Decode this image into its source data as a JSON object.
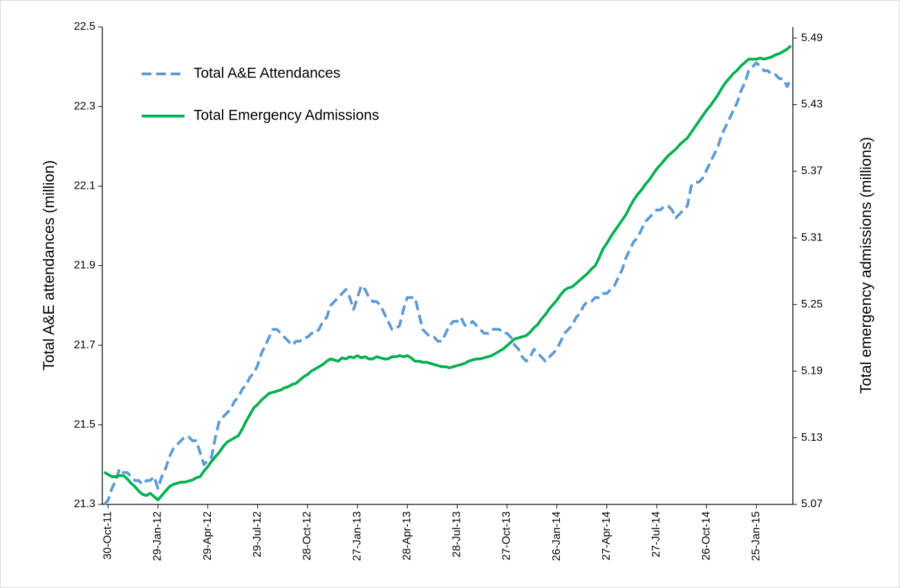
{
  "chart_data": {
    "type": "line",
    "categories": [
      null,
      "30-Oct-11",
      null,
      null,
      null,
      null,
      null,
      null,
      null,
      null,
      null,
      null,
      null,
      null,
      "29-Jan-12",
      null,
      null,
      null,
      null,
      null,
      null,
      null,
      null,
      null,
      null,
      null,
      null,
      "29-Apr-12",
      null,
      null,
      null,
      null,
      null,
      null,
      null,
      null,
      null,
      null,
      null,
      null,
      "29-Jul-12",
      null,
      null,
      null,
      null,
      null,
      null,
      null,
      null,
      null,
      null,
      null,
      null,
      "28-Oct-12",
      null,
      null,
      null,
      null,
      null,
      null,
      null,
      null,
      null,
      null,
      null,
      null,
      "27-Jan-13",
      null,
      null,
      null,
      null,
      null,
      null,
      null,
      null,
      null,
      null,
      null,
      null,
      "28-Apr-13",
      null,
      null,
      null,
      null,
      null,
      null,
      null,
      null,
      null,
      null,
      null,
      null,
      "28-Jul-13",
      null,
      null,
      null,
      null,
      null,
      null,
      null,
      null,
      null,
      null,
      null,
      null,
      "27-Oct-13",
      null,
      null,
      null,
      null,
      null,
      null,
      null,
      null,
      null,
      null,
      null,
      null,
      "26-Jan-14",
      null,
      null,
      null,
      null,
      null,
      null,
      null,
      null,
      null,
      null,
      null,
      null,
      "27-Apr-14",
      null,
      null,
      null,
      null,
      null,
      null,
      null,
      null,
      null,
      null,
      null,
      null,
      "27-Jul-14",
      null,
      null,
      null,
      null,
      null,
      null,
      null,
      null,
      null,
      null,
      null,
      null,
      "26-Oct-14",
      null,
      null,
      null,
      null,
      null,
      null,
      null,
      null,
      null,
      null,
      null,
      null,
      "25-Jan-15",
      null,
      null,
      null,
      null,
      null,
      null,
      null,
      null,
      null
    ],
    "series": [
      {
        "name": "Total A&E Attendances",
        "color": "#5b9bd5",
        "line_style": "dashed",
        "values": [
          21.3,
          21.31,
          21.34,
          21.36,
          21.39,
          21.38,
          21.38,
          21.37,
          21.36,
          21.36,
          21.35,
          21.36,
          21.36,
          21.37,
          21.34,
          21.37,
          21.39,
          21.42,
          21.44,
          21.45,
          21.46,
          21.47,
          21.47,
          21.46,
          21.46,
          21.43,
          21.4,
          21.41,
          21.42,
          21.47,
          21.51,
          21.52,
          21.53,
          21.54,
          21.56,
          21.57,
          21.59,
          21.6,
          21.62,
          21.63,
          21.65,
          21.68,
          21.7,
          21.72,
          21.74,
          21.74,
          21.73,
          21.72,
          21.71,
          21.7,
          21.71,
          21.71,
          21.72,
          21.72,
          21.73,
          21.73,
          21.74,
          21.76,
          21.77,
          21.8,
          21.81,
          21.82,
          21.83,
          21.84,
          21.82,
          21.79,
          21.82,
          21.85,
          21.84,
          21.82,
          21.81,
          21.81,
          21.8,
          21.78,
          21.76,
          21.74,
          21.74,
          21.75,
          21.79,
          21.82,
          21.82,
          21.82,
          21.78,
          21.74,
          21.73,
          21.72,
          21.72,
          21.71,
          21.71,
          21.73,
          21.75,
          21.76,
          21.76,
          21.77,
          21.75,
          21.75,
          21.76,
          21.75,
          21.74,
          21.73,
          21.73,
          21.74,
          21.74,
          21.74,
          21.73,
          21.73,
          21.72,
          21.7,
          21.69,
          21.67,
          21.66,
          21.67,
          21.69,
          21.68,
          21.67,
          21.66,
          21.67,
          21.68,
          21.69,
          21.71,
          21.73,
          21.74,
          21.75,
          21.77,
          21.78,
          21.8,
          21.81,
          21.81,
          21.82,
          21.82,
          21.83,
          21.83,
          21.84,
          21.85,
          21.87,
          21.89,
          21.92,
          21.94,
          21.96,
          21.97,
          21.99,
          22.01,
          22.02,
          22.03,
          22.04,
          22.04,
          22.05,
          22.05,
          22.04,
          22.02,
          22.03,
          22.04,
          22.05,
          22.1,
          22.11,
          22.11,
          22.12,
          22.14,
          22.16,
          22.18,
          22.2,
          22.23,
          22.25,
          22.27,
          22.29,
          22.31,
          22.34,
          22.36,
          22.39,
          22.4,
          22.41,
          22.4,
          22.39,
          22.39,
          22.38,
          22.38,
          22.37,
          22.37,
          22.35,
          22.37
        ]
      },
      {
        "name": "Total Emergency Admissions",
        "color": "#00b050",
        "line_style": "solid",
        "axis": "y2",
        "values": [
          5.099,
          5.097,
          5.095,
          5.095,
          5.096,
          5.096,
          5.093,
          5.089,
          5.086,
          5.082,
          5.079,
          5.078,
          5.08,
          5.077,
          5.074,
          5.078,
          5.082,
          5.086,
          5.088,
          5.089,
          5.09,
          5.09,
          5.091,
          5.092,
          5.094,
          5.095,
          5.1,
          5.104,
          5.109,
          5.113,
          5.117,
          5.122,
          5.126,
          5.128,
          5.13,
          5.132,
          5.138,
          5.145,
          5.151,
          5.157,
          5.16,
          5.164,
          5.167,
          5.17,
          5.171,
          5.172,
          5.173,
          5.175,
          5.176,
          5.178,
          5.179,
          5.182,
          5.185,
          5.187,
          5.19,
          5.192,
          5.194,
          5.196,
          5.199,
          5.201,
          5.2,
          5.199,
          5.202,
          5.201,
          5.203,
          5.202,
          5.204,
          5.202,
          5.203,
          5.201,
          5.201,
          5.203,
          5.202,
          5.201,
          5.201,
          5.203,
          5.203,
          5.204,
          5.203,
          5.204,
          5.202,
          5.199,
          5.199,
          5.198,
          5.198,
          5.197,
          5.196,
          5.195,
          5.194,
          5.194,
          5.193,
          5.194,
          5.195,
          5.196,
          5.197,
          5.199,
          5.2,
          5.201,
          5.201,
          5.202,
          5.203,
          5.204,
          5.206,
          5.208,
          5.21,
          5.213,
          5.216,
          5.219,
          5.22,
          5.221,
          5.222,
          5.225,
          5.229,
          5.232,
          5.237,
          5.241,
          5.246,
          5.25,
          5.254,
          5.259,
          5.263,
          5.265,
          5.266,
          5.269,
          5.272,
          5.275,
          5.278,
          5.282,
          5.285,
          5.292,
          5.3,
          5.305,
          5.311,
          5.316,
          5.321,
          5.326,
          5.331,
          5.338,
          5.344,
          5.349,
          5.353,
          5.358,
          5.362,
          5.367,
          5.372,
          5.376,
          5.38,
          5.384,
          5.387,
          5.39,
          5.394,
          5.397,
          5.4,
          5.405,
          5.41,
          5.415,
          5.42,
          5.425,
          5.429,
          5.434,
          5.439,
          5.445,
          5.45,
          5.454,
          5.458,
          5.461,
          5.465,
          5.468,
          5.471,
          5.471,
          5.471,
          5.472,
          5.471,
          5.472,
          5.473,
          5.475,
          5.476,
          5.478,
          5.48,
          5.483
        ]
      }
    ],
    "y_label": "Total A&E attendances (million)",
    "y2_label": "Total emergency admissions (millions)",
    "ylim": [
      21.3,
      22.5
    ],
    "yticks": [
      21.3,
      21.5,
      21.7,
      21.9,
      22.1,
      22.3,
      22.5
    ],
    "y2lim": [
      5.07,
      5.5
    ],
    "y2ticks": [
      5.07,
      5.13,
      5.19,
      5.25,
      5.31,
      5.37,
      5.43,
      5.49
    ],
    "legend": "upper left",
    "grid": false
  }
}
